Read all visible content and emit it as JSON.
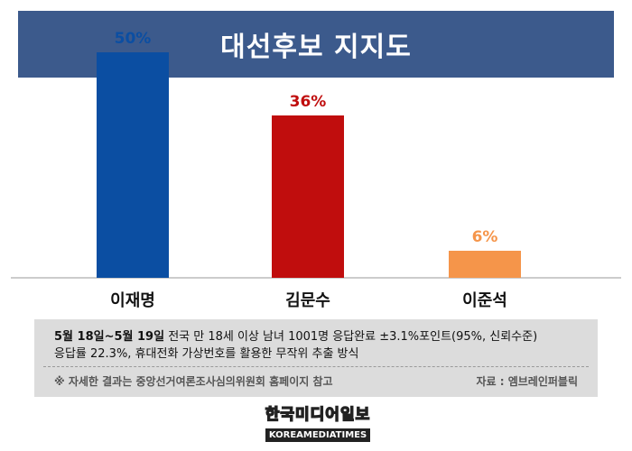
{
  "chart_data": {
    "type": "bar",
    "title": "대선후보 지지도",
    "categories": [
      "이재명",
      "김문수",
      "이준석"
    ],
    "values": [
      50,
      36,
      6
    ],
    "value_labels": [
      "50%",
      "36%",
      "6%"
    ],
    "colors": [
      "#0b4ea2",
      "#c00d0d",
      "#f5954a"
    ],
    "ylim": [
      0,
      60
    ],
    "grid": false
  },
  "notes": {
    "date_range": "5월 18일~5월 19일",
    "line1_rest": " 전국 만 18세 이상 남녀 1001명 응답완료 ±3.1%포인트(95%, 신뢰수준)",
    "line2": "응답률 22.3%, 휴대전화 가상번호를 활용한 무작위 추출 방식",
    "line3": "※ 자세한 결과는 중앙선거여론조사심의위원회 홈페이지 참고",
    "source": "자료 : 엠브레인퍼블릭"
  },
  "logo": {
    "korean": "한국미디어일보",
    "english": "KOREAMEDIATIMES"
  }
}
